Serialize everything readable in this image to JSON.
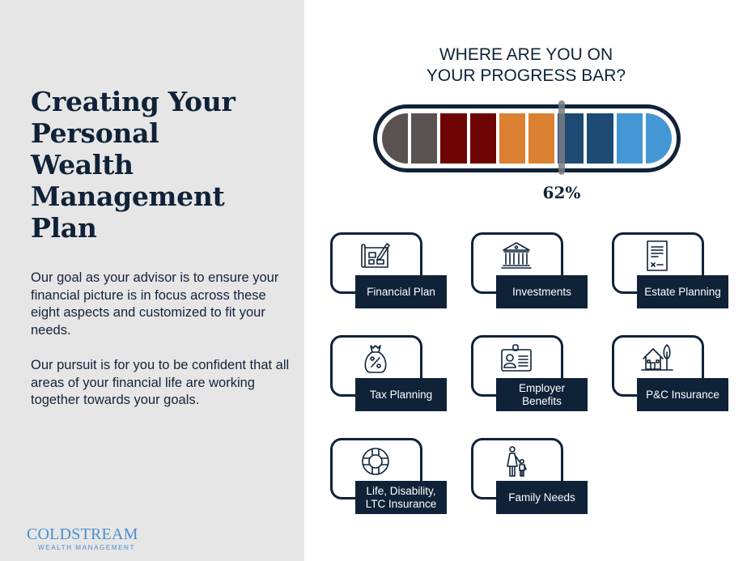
{
  "left_panel": {
    "title_lines": [
      "Creating Your",
      "Personal",
      "Wealth",
      "Management",
      "Plan"
    ],
    "paragraph1": "Our goal as your advisor is to ensure your financial picture is in focus across these eight aspects and customized to fit your needs.",
    "paragraph2": "Our pursuit is for you to be confident that all areas of your financial life are working together towards your goals.",
    "logo": {
      "main": "COLDSTREAM",
      "sub": "WEALTH MANAGEMENT"
    }
  },
  "progress": {
    "title_lines": [
      "WHERE ARE YOU ON",
      "YOUR PROGRESS BAR?"
    ],
    "percent_label": "62%",
    "percent_value": 62,
    "segment_colors": [
      "#5a5250",
      "#5a5250",
      "#6e0504",
      "#6e0504",
      "#dc8032",
      "#dc8032",
      "#1d4a72",
      "#1d4a72",
      "#4596d5",
      "#4596d5"
    ],
    "frame_color": "#0f2238",
    "marker_color": "#7b8088"
  },
  "cards": [
    {
      "label": "Financial Plan",
      "icon": "blueprint-pencil-icon"
    },
    {
      "label": "Investments",
      "icon": "bank-building-icon"
    },
    {
      "label": "Estate Planning",
      "icon": "document-signature-icon"
    },
    {
      "label": "Tax Planning",
      "icon": "money-bag-percent-icon"
    },
    {
      "label": "Employer Benefits",
      "icon": "id-badge-icon"
    },
    {
      "label": "P&C Insurance",
      "icon": "house-tree-icon"
    },
    {
      "label": "Life, Disability, LTC Insurance",
      "icon": "life-ring-icon"
    },
    {
      "label": "Family Needs",
      "icon": "parent-child-icon"
    }
  ]
}
